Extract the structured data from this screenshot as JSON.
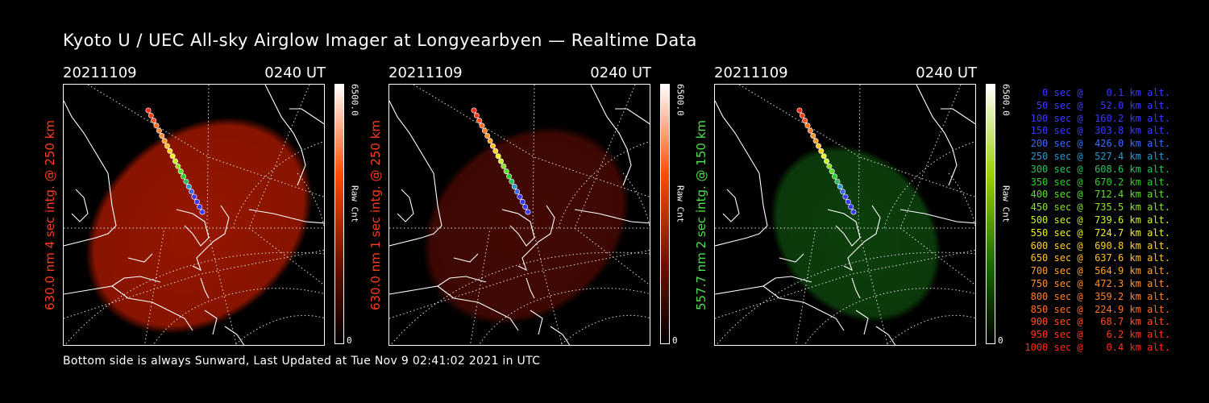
{
  "title": "Kyoto U / UEC All-sky Airglow Imager at Longyearbyen — Realtime Data",
  "footer": "Bottom side is always Sunward, Last Updated at Tue Nov  9 02:41:02 2021 in UTC",
  "panels": [
    {
      "date": "20211109",
      "time": "0240 UT",
      "ylabel": "630.0 nm 4 sec intg. @ 250 km",
      "ylabel_color": "#ff3b1f",
      "cbar_max": "6500.0",
      "cbar_min": "0",
      "cbar_unit": "Raw Cnt",
      "emission_color": "#b01a00",
      "emission_opacity": 0.85
    },
    {
      "date": "20211109",
      "time": "0240 UT",
      "ylabel": "630.0 nm 1 sec intg. @ 250 km",
      "ylabel_color": "#ff3b1f",
      "cbar_max": "6500.0",
      "cbar_min": "0",
      "cbar_unit": "Raw Cnt",
      "emission_color": "#5a0c05",
      "emission_opacity": 0.75
    },
    {
      "date": "20211109",
      "time": "0240 UT",
      "ylabel": "557.7 nm 2 sec intg. @ 150 km",
      "ylabel_color": "#4fe04f",
      "cbar_max": "6500.0",
      "cbar_min": "0",
      "cbar_unit": "Raw Cnt",
      "emission_color": "#0e4a0e",
      "emission_opacity": 0.85
    }
  ],
  "legend": [
    {
      "text": "   0 sec @    0.1 km alt.",
      "color": "#3a3aff"
    },
    {
      "text": "  50 sec @   52.0 km alt.",
      "color": "#3a3aff"
    },
    {
      "text": " 100 sec @  160.2 km alt.",
      "color": "#3a3aff"
    },
    {
      "text": " 150 sec @  303.8 km alt.",
      "color": "#3a3aff"
    },
    {
      "text": " 200 sec @  426.0 km alt.",
      "color": "#3a6aff"
    },
    {
      "text": " 250 sec @  527.4 km alt.",
      "color": "#2a9ad0"
    },
    {
      "text": " 300 sec @  608.6 km alt.",
      "color": "#2ac060"
    },
    {
      "text": " 350 sec @  670.2 km alt.",
      "color": "#2ad02a"
    },
    {
      "text": " 400 sec @  712.4 km alt.",
      "color": "#5ae02a"
    },
    {
      "text": " 450 sec @  735.5 km alt.",
      "color": "#8ae02a"
    },
    {
      "text": " 500 sec @  739.6 km alt.",
      "color": "#c8f02a"
    },
    {
      "text": " 550 sec @  724.7 km alt.",
      "color": "#f0f02a"
    },
    {
      "text": " 600 sec @  690.8 km alt.",
      "color": "#ffd02a"
    },
    {
      "text": " 650 sec @  637.6 km alt.",
      "color": "#ffc02a"
    },
    {
      "text": " 700 sec @  564.9 km alt.",
      "color": "#ffa02a"
    },
    {
      "text": " 750 sec @  472.3 km alt.",
      "color": "#ff902a"
    },
    {
      "text": " 800 sec @  359.2 km alt.",
      "color": "#ff802a"
    },
    {
      "text": " 850 sec @  224.9 km alt.",
      "color": "#ff7020"
    },
    {
      "text": " 900 sec @   68.7 km alt.",
      "color": "#ff5020"
    },
    {
      "text": " 950 sec @    6.2 km alt.",
      "color": "#ff3a1a"
    },
    {
      "text": "1000 sec @    0.4 km alt.",
      "color": "#ff2a1a"
    }
  ]
}
